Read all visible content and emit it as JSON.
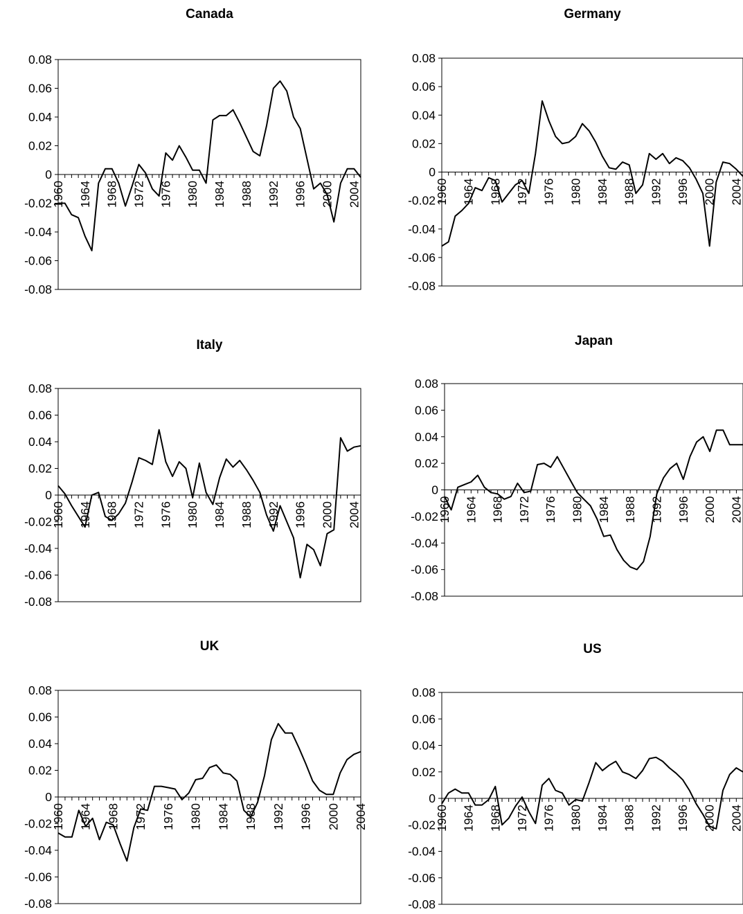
{
  "chart_data": [
    {
      "type": "line",
      "title": "Canada",
      "ylim": [
        -0.08,
        0.08
      ],
      "yticks": [
        "0.08",
        "0.06",
        "0.04",
        "0.02",
        "0",
        "-0.02",
        "-0.04",
        "-0.06",
        "-0.08"
      ],
      "xticks": [
        "1960",
        "1964",
        "1968",
        "1972",
        "1976",
        "1980",
        "1984",
        "1988",
        "1992",
        "1996",
        "2000",
        "2004"
      ],
      "x": [
        1960,
        1961,
        1962,
        1963,
        1964,
        1965,
        1966,
        1967,
        1968,
        1969,
        1970,
        1971,
        1972,
        1973,
        1974,
        1975,
        1976,
        1977,
        1978,
        1979,
        1980,
        1981,
        1982,
        1983,
        1984,
        1985,
        1986,
        1987,
        1988,
        1989,
        1990,
        1991,
        1992,
        1993,
        1994,
        1995,
        1996,
        1997,
        1998,
        1999,
        2000,
        2001,
        2002,
        2003,
        2004,
        2005
      ],
      "series": [
        {
          "values": [
            -0.02,
            -0.02,
            -0.028,
            -0.03,
            -0.043,
            -0.053,
            -0.006,
            0.004,
            0.004,
            -0.006,
            -0.022,
            -0.008,
            0.007,
            0.001,
            -0.01,
            -0.015,
            0.015,
            0.01,
            0.02,
            0.012,
            0.003,
            0.003,
            -0.006,
            0.038,
            0.041,
            0.041,
            0.045,
            0.036,
            0.026,
            0.016,
            0.013,
            0.034,
            0.06,
            0.065,
            0.058,
            0.04,
            0.032,
            0.011,
            -0.01,
            -0.006,
            -0.014,
            -0.033,
            -0.006,
            0.004,
            0.004,
            -0.002
          ]
        }
      ]
    },
    {
      "type": "line",
      "title": "Germany",
      "ylim": [
        -0.08,
        0.08
      ],
      "yticks": [
        "0.08",
        "0.06",
        "0.04",
        "0.02",
        "0",
        "-0.02",
        "-0.04",
        "-0.06",
        "-0.08"
      ],
      "xticks": [
        "1960",
        "1964",
        "1968",
        "1972",
        "1976",
        "1980",
        "1984",
        "1988",
        "1992",
        "1996",
        "2000",
        "2004"
      ],
      "x": [
        1960,
        1961,
        1962,
        1963,
        1964,
        1965,
        1966,
        1967,
        1968,
        1969,
        1970,
        1971,
        1972,
        1973,
        1974,
        1975,
        1976,
        1977,
        1978,
        1979,
        1980,
        1981,
        1982,
        1983,
        1984,
        1985,
        1986,
        1987,
        1988,
        1989,
        1990,
        1991,
        1992,
        1993,
        1994,
        1995,
        1996,
        1997,
        1998,
        1999,
        2000,
        2001,
        2002,
        2003,
        2004,
        2005
      ],
      "series": [
        {
          "values": [
            -0.052,
            -0.049,
            -0.031,
            -0.027,
            -0.022,
            -0.011,
            -0.013,
            -0.004,
            -0.006,
            -0.021,
            -0.015,
            -0.009,
            -0.006,
            -0.015,
            0.013,
            0.05,
            0.036,
            0.025,
            0.02,
            0.021,
            0.025,
            0.034,
            0.029,
            0.021,
            0.011,
            0.003,
            0.002,
            0.007,
            0.005,
            -0.015,
            -0.009,
            0.013,
            0.009,
            0.013,
            0.006,
            0.01,
            0.008,
            0.003,
            -0.005,
            -0.015,
            -0.052,
            -0.007,
            0.007,
            0.006,
            0.002,
            -0.003
          ]
        }
      ]
    },
    {
      "type": "line",
      "title": "Italy",
      "ylim": [
        -0.08,
        0.08
      ],
      "yticks": [
        "0.08",
        "0.06",
        "0.04",
        "0.02",
        "0",
        "-0.02",
        "-0.04",
        "-0.06",
        "-0.08"
      ],
      "xticks": [
        "1960",
        "1964",
        "1968",
        "1972",
        "1976",
        "1980",
        "1984",
        "1988",
        "1992",
        "1996",
        "2000",
        "2004"
      ],
      "x": [
        1960,
        1961,
        1962,
        1963,
        1964,
        1965,
        1966,
        1967,
        1968,
        1969,
        1970,
        1971,
        1972,
        1973,
        1974,
        1975,
        1976,
        1977,
        1978,
        1979,
        1980,
        1981,
        1982,
        1983,
        1984,
        1985,
        1986,
        1987,
        1988,
        1989,
        1990,
        1991,
        1992,
        1993,
        1994,
        1995,
        1996,
        1997,
        1998,
        1999,
        2000,
        2001,
        2002,
        2003,
        2004,
        2005
      ],
      "series": [
        {
          "values": [
            0.007,
            0.001,
            -0.008,
            -0.016,
            -0.024,
            0.0,
            0.002,
            -0.016,
            -0.019,
            -0.014,
            -0.006,
            0.01,
            0.028,
            0.026,
            0.023,
            0.049,
            0.025,
            0.014,
            0.025,
            0.02,
            -0.002,
            0.024,
            0.002,
            -0.007,
            0.013,
            0.027,
            0.021,
            0.026,
            0.019,
            0.011,
            0.002,
            -0.015,
            -0.027,
            -0.008,
            -0.02,
            -0.032,
            -0.062,
            -0.037,
            -0.041,
            -0.053,
            -0.029,
            -0.026,
            0.043,
            0.033,
            0.036,
            0.037
          ]
        }
      ]
    },
    {
      "type": "line",
      "title": "Japan",
      "ylim": [
        -0.08,
        0.08
      ],
      "yticks": [
        "0.08",
        "0.06",
        "0.04",
        "0.02",
        "0",
        "-0.02",
        "-0.04",
        "-0.06",
        "-0.08"
      ],
      "xticks": [
        "1960",
        "1964",
        "1968",
        "1972",
        "1976",
        "1980",
        "1984",
        "1988",
        "1992",
        "1996",
        "2000",
        "2004"
      ],
      "x": [
        1960,
        1961,
        1962,
        1963,
        1964,
        1965,
        1966,
        1967,
        1968,
        1969,
        1970,
        1971,
        1972,
        1973,
        1974,
        1975,
        1976,
        1977,
        1978,
        1979,
        1980,
        1981,
        1982,
        1983,
        1984,
        1985,
        1986,
        1987,
        1988,
        1989,
        1990,
        1991,
        1992,
        1993,
        1994,
        1995,
        1996,
        1997,
        1998,
        1999,
        2000,
        2001,
        2002,
        2003,
        2004,
        2005
      ],
      "series": [
        {
          "values": [
            -0.005,
            -0.015,
            0.002,
            0.004,
            0.006,
            0.011,
            0.002,
            -0.002,
            -0.003,
            -0.007,
            -0.005,
            0.005,
            -0.002,
            -0.001,
            0.019,
            0.02,
            0.017,
            0.025,
            0.016,
            0.007,
            -0.002,
            -0.007,
            -0.012,
            -0.022,
            -0.035,
            -0.034,
            -0.045,
            -0.053,
            -0.058,
            -0.06,
            -0.054,
            -0.035,
            -0.003,
            0.009,
            0.016,
            0.02,
            0.008,
            0.025,
            0.036,
            0.04,
            0.029,
            0.045,
            0.045,
            0.034,
            0.034,
            0.034
          ]
        }
      ]
    },
    {
      "type": "line",
      "title": "UK",
      "ylim": [
        -0.08,
        0.08
      ],
      "yticks": [
        "0.08",
        "0.06",
        "0.04",
        "0.02",
        "0",
        "-0.02",
        "-0.04",
        "-0.06",
        "-0.08"
      ],
      "xticks": [
        "1960",
        "1964",
        "1968",
        "1972",
        "1976",
        "1980",
        "1984",
        "1988",
        "1992",
        "1996",
        "2000",
        "2004"
      ],
      "x": [
        1960,
        1961,
        1962,
        1963,
        1964,
        1965,
        1966,
        1967,
        1968,
        1969,
        1970,
        1971,
        1972,
        1973,
        1974,
        1975,
        1976,
        1977,
        1978,
        1979,
        1980,
        1981,
        1982,
        1983,
        1984,
        1985,
        1986,
        1987,
        1988,
        1989,
        1990,
        1991,
        1992,
        1993,
        1994,
        1995,
        1996,
        1997,
        1998,
        1999,
        2000,
        2001,
        2002,
        2003,
        2004
      ],
      "series": [
        {
          "values": [
            -0.027,
            -0.03,
            -0.03,
            -0.01,
            -0.022,
            -0.016,
            -0.032,
            -0.019,
            -0.021,
            -0.035,
            -0.048,
            -0.023,
            -0.009,
            -0.01,
            0.008,
            0.008,
            0.007,
            0.006,
            -0.002,
            0.003,
            0.013,
            0.014,
            0.022,
            0.024,
            0.018,
            0.017,
            0.012,
            -0.01,
            -0.015,
            -0.004,
            0.016,
            0.043,
            0.055,
            0.048,
            0.048,
            0.037,
            0.025,
            0.012,
            0.005,
            0.002,
            0.002,
            0.018,
            0.028,
            0.032,
            0.034
          ]
        }
      ]
    },
    {
      "type": "line",
      "title": "US",
      "ylim": [
        -0.08,
        0.08
      ],
      "yticks": [
        "0.08",
        "0.06",
        "0.04",
        "0.02",
        "0",
        "-0.02",
        "-0.04",
        "-0.06",
        "-0.08"
      ],
      "xticks": [
        "1960",
        "1964",
        "1968",
        "1972",
        "1976",
        "1980",
        "1984",
        "1988",
        "1992",
        "1996",
        "2000",
        "2004"
      ],
      "x": [
        1960,
        1961,
        1962,
        1963,
        1964,
        1965,
        1966,
        1967,
        1968,
        1969,
        1970,
        1971,
        1972,
        1973,
        1974,
        1975,
        1976,
        1977,
        1978,
        1979,
        1980,
        1981,
        1982,
        1983,
        1984,
        1985,
        1986,
        1987,
        1988,
        1989,
        1990,
        1991,
        1992,
        1993,
        1994,
        1995,
        1996,
        1997,
        1998,
        1999,
        2000,
        2001,
        2002,
        2003,
        2004,
        2005
      ],
      "series": [
        {
          "values": [
            -0.004,
            0.004,
            0.007,
            0.004,
            0.004,
            -0.005,
            -0.005,
            -0.001,
            0.009,
            -0.02,
            -0.015,
            -0.006,
            0.001,
            -0.01,
            -0.019,
            0.01,
            0.015,
            0.006,
            0.004,
            -0.005,
            -0.001,
            -0.002,
            0.012,
            0.027,
            0.021,
            0.025,
            0.028,
            0.02,
            0.018,
            0.015,
            0.021,
            0.03,
            0.031,
            0.028,
            0.023,
            0.019,
            0.014,
            0.006,
            -0.004,
            -0.012,
            -0.021,
            -0.023,
            0.006,
            0.018,
            0.023,
            0.02
          ]
        }
      ]
    }
  ]
}
